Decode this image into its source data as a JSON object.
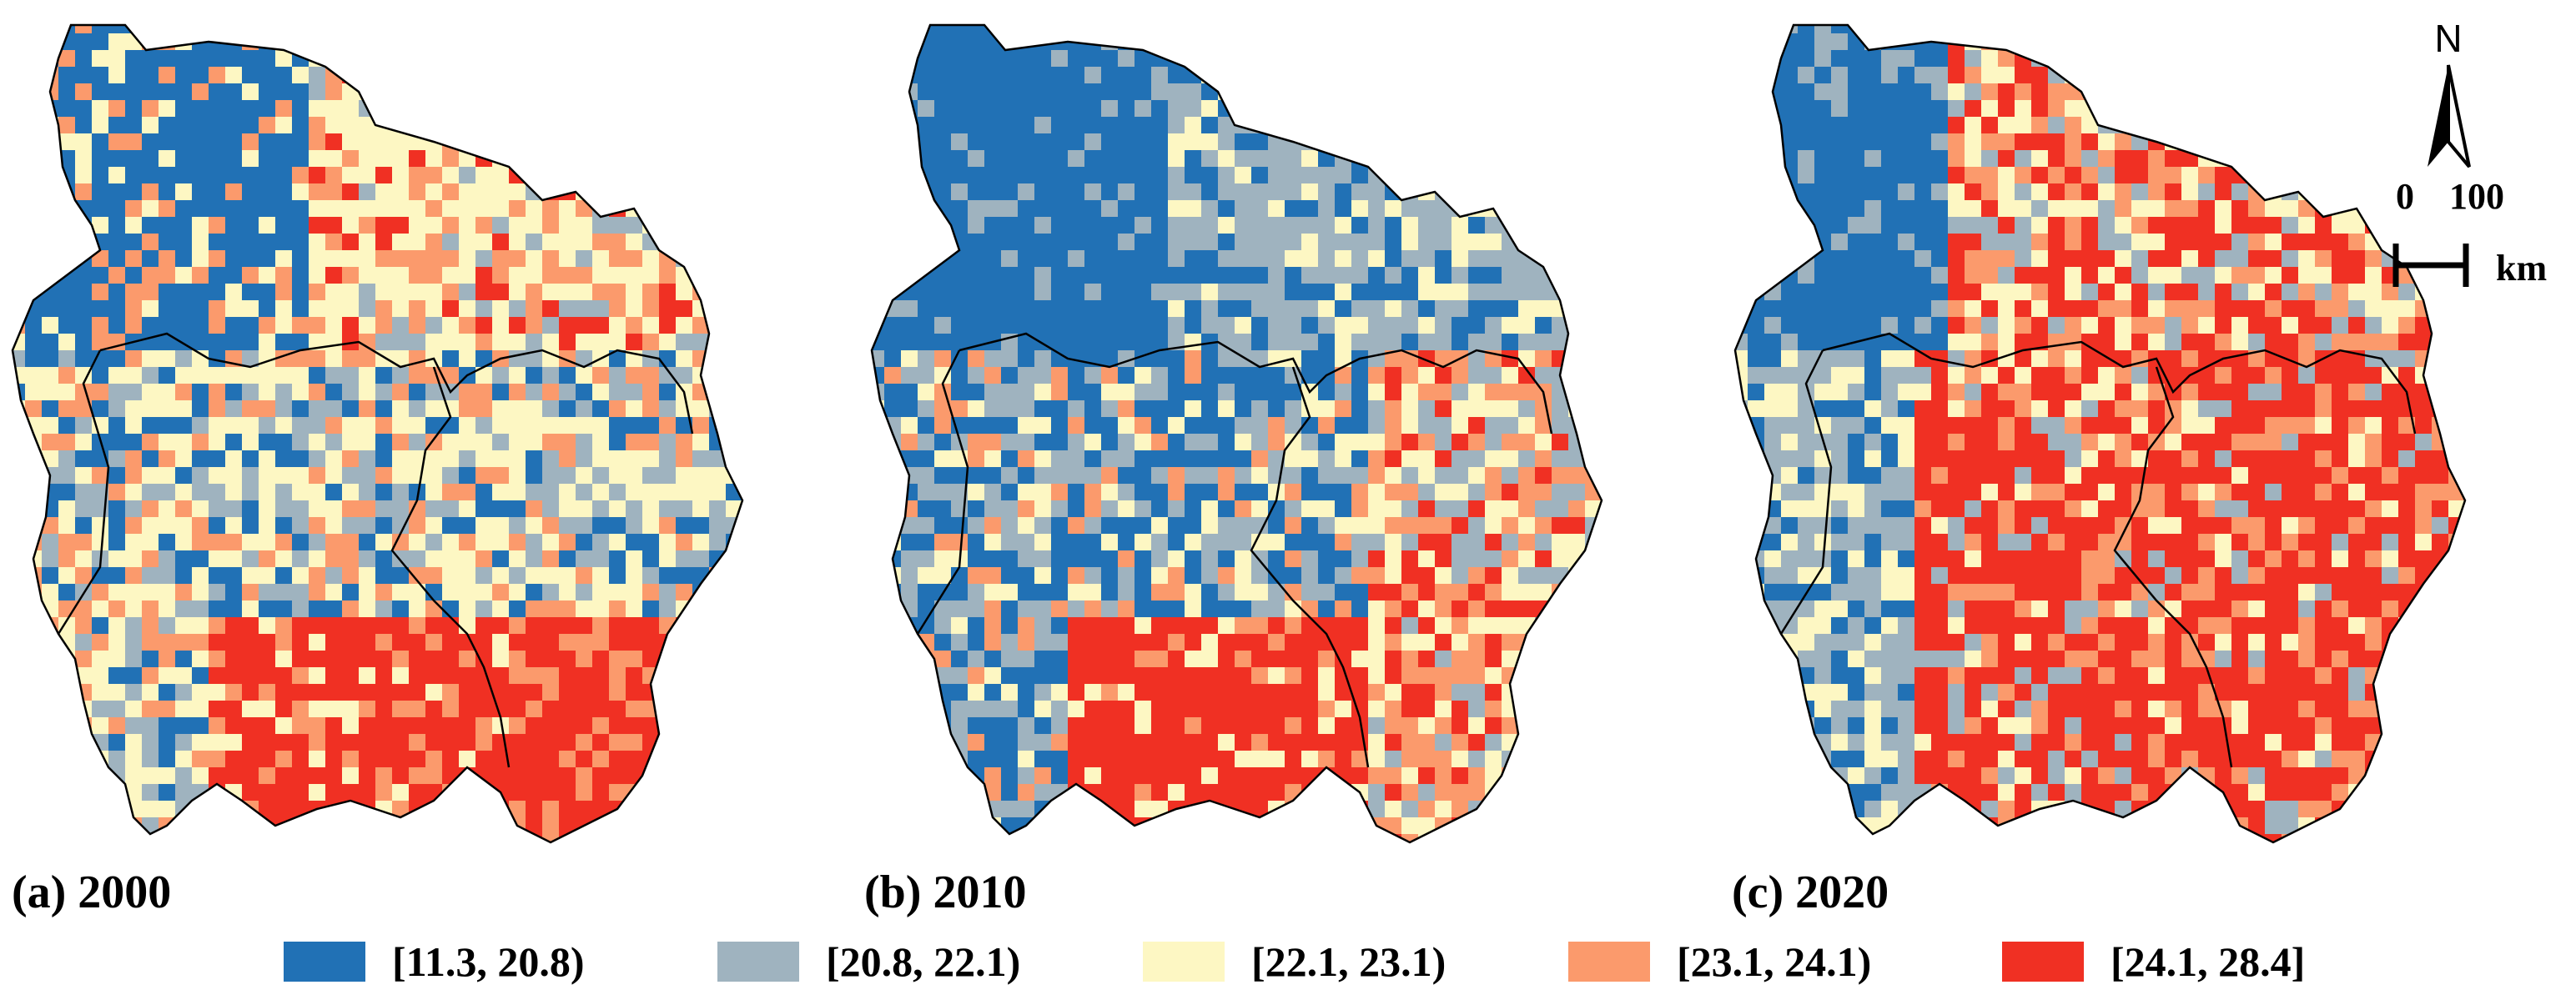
{
  "panels": [
    {
      "label": "(a) 2000"
    },
    {
      "label": "(b) 2010"
    },
    {
      "label": "(c) 2020"
    }
  ],
  "legend": [
    {
      "label": "[11.3, 20.8)",
      "color": "#2171b5"
    },
    {
      "label": "[20.8, 22.1)",
      "color": "#9fb3bf"
    },
    {
      "label": "[22.1, 23.1)",
      "color": "#fdf7c3"
    },
    {
      "label": "[23.1, 24.1)",
      "color": "#fb9a6c"
    },
    {
      "label": "[24.1, 28.4]",
      "color": "#f03023"
    }
  ],
  "north_arrow": {
    "label": "N",
    "icon": "north-arrow-icon"
  },
  "scale_bar": {
    "start": "0",
    "end": "100",
    "unit": "km"
  },
  "map_data": {
    "type": "choropleth-raster",
    "classes": [
      "[11.3, 20.8)",
      "[20.8, 22.1)",
      "[22.1, 23.1)",
      "[23.1, 24.1)",
      "[24.1, 28.4]"
    ],
    "years": [
      "2000",
      "2010",
      "2020"
    ]
  }
}
